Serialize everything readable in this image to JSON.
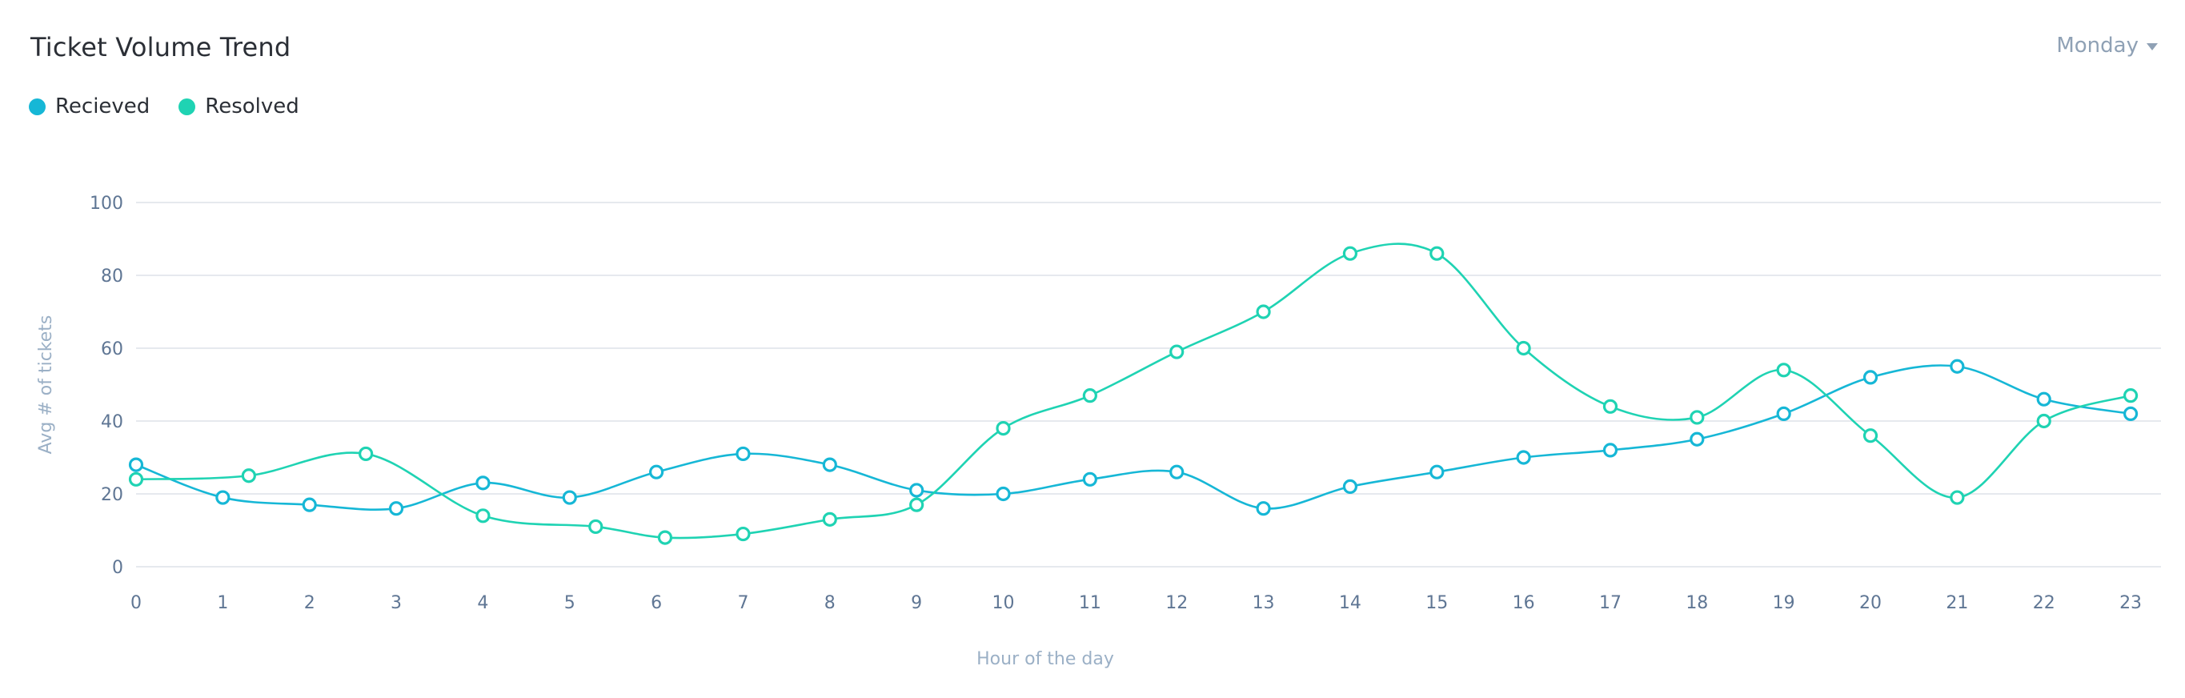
{
  "header": {
    "title": "Ticket Volume Trend",
    "day_selector": "Monday",
    "dropdown_icon": "chevron-down-icon"
  },
  "colors": {
    "recieved": "#16b7d6",
    "resolved": "#1fd3b3",
    "grid": "#e6e9ee",
    "tick": "#5f7694",
    "axis_title": "#9bb0c6"
  },
  "chart_data": {
    "type": "line",
    "xlabel": "Hour of the day",
    "ylabel": "Avg # of tickets",
    "ylim": [
      0,
      100
    ],
    "yticks": [
      0,
      20,
      40,
      60,
      80,
      100
    ],
    "xticks": [
      0,
      1,
      2,
      3,
      4,
      5,
      6,
      7,
      8,
      9,
      10,
      11,
      12,
      13,
      14,
      15,
      16,
      17,
      18,
      19,
      20,
      21,
      22,
      23
    ],
    "grid": true,
    "legend": "top-left",
    "series": [
      {
        "name": "Recieved",
        "x": [
          0,
          1,
          2,
          3,
          4,
          5,
          6,
          7,
          8,
          9,
          10,
          11,
          12,
          13,
          14,
          15,
          16,
          17,
          18,
          19,
          20,
          21,
          22,
          23
        ],
        "values": [
          28,
          19,
          17,
          16,
          23,
          19,
          26,
          31,
          28,
          21,
          20,
          24,
          26,
          16,
          22,
          26,
          30,
          32,
          35,
          42,
          52,
          55,
          46,
          42
        ]
      },
      {
        "name": "Resolved",
        "x": [
          0,
          1.3,
          2.65,
          4,
          5.3,
          6.1,
          7,
          8,
          9,
          10,
          11,
          12,
          13,
          14,
          15,
          16,
          17,
          18,
          19,
          20,
          21,
          22,
          23
        ],
        "values": [
          24,
          25,
          31,
          14,
          11,
          8,
          9,
          13,
          17,
          38,
          47,
          59,
          70,
          86,
          86,
          60,
          44,
          41,
          54,
          36,
          19,
          40,
          47
        ]
      }
    ]
  }
}
